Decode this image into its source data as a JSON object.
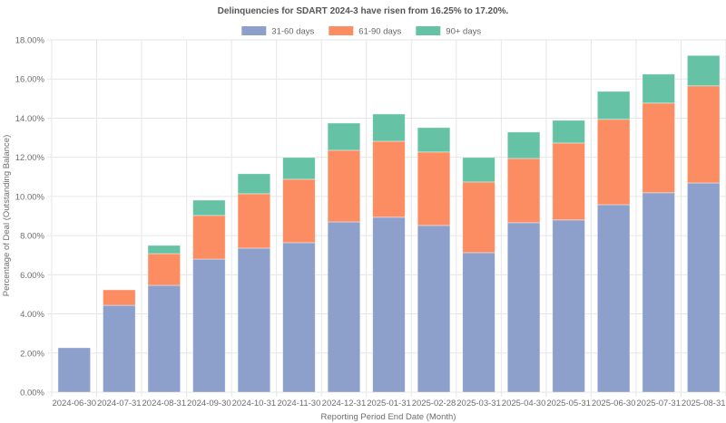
{
  "chart_data": {
    "type": "bar",
    "stacked": true,
    "title": "Delinquencies for SDART 2024-3 have risen from 16.25% to 17.20%.",
    "xlabel": "Reporting Period End Date (Month)",
    "ylabel": "Percentage of Deal (Outstanding Balance)",
    "ylim": [
      0,
      18
    ],
    "yticks": [
      "0.00%",
      "2.00%",
      "4.00%",
      "6.00%",
      "8.00%",
      "10.00%",
      "12.00%",
      "14.00%",
      "16.00%",
      "18.00%"
    ],
    "ytick_values": [
      0,
      2,
      4,
      6,
      8,
      10,
      12,
      14,
      16,
      18
    ],
    "grid": true,
    "legend_position": "top-center",
    "categories": [
      "2024-06-30",
      "2024-07-31",
      "2024-08-31",
      "2024-09-30",
      "2024-10-31",
      "2024-11-30",
      "2024-12-31",
      "2025-01-31",
      "2025-02-28",
      "2025-03-31",
      "2025-04-30",
      "2025-05-31",
      "2025-06-30",
      "2025-07-31",
      "2025-08-31"
    ],
    "series": [
      {
        "name": "31-60 days",
        "color": "#8da0cb",
        "values": [
          2.27,
          4.44,
          5.46,
          6.8,
          7.36,
          7.64,
          8.7,
          8.94,
          8.52,
          7.13,
          8.66,
          8.8,
          9.58,
          10.19,
          10.69
        ]
      },
      {
        "name": "61-90 days",
        "color": "#fc8d62",
        "values": [
          0.0,
          0.79,
          1.62,
          2.23,
          2.78,
          3.24,
          3.66,
          3.88,
          3.75,
          3.61,
          3.28,
          3.93,
          4.36,
          4.58,
          4.96
        ]
      },
      {
        "name": "90+ days",
        "color": "#66c2a5",
        "values": [
          0.0,
          0.0,
          0.42,
          0.78,
          1.02,
          1.11,
          1.39,
          1.39,
          1.25,
          1.25,
          1.35,
          1.16,
          1.43,
          1.48,
          1.55
        ]
      }
    ]
  }
}
